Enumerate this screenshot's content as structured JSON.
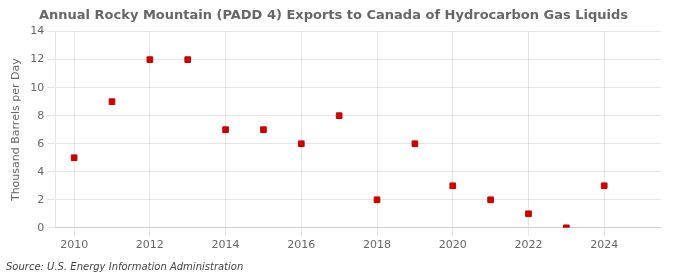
{
  "chart_data": {
    "type": "scatter",
    "title": "Annual Rocky Mountain (PADD 4) Exports to Canada of Hydrocarbon Gas Liquids",
    "ylabel": "Thousand Barrels per Day",
    "source": "Source: U.S. Energy Information Administration",
    "x": [
      2010,
      2011,
      2012,
      2013,
      2014,
      2015,
      2016,
      2017,
      2018,
      2019,
      2020,
      2021,
      2022,
      2023,
      2024
    ],
    "values": [
      5,
      9,
      12,
      12,
      7,
      7,
      6,
      8,
      2,
      6,
      3,
      2,
      1,
      0,
      3
    ],
    "color": "#cc0000",
    "marker": "square",
    "xlim": [
      2009.5,
      2025.5
    ],
    "xticks": [
      2010,
      2012,
      2014,
      2016,
      2018,
      2020,
      2022,
      2024
    ],
    "ylim": [
      0,
      14
    ],
    "yticks": [
      0,
      2,
      4,
      6,
      8,
      10,
      12,
      14
    ],
    "grid": true
  }
}
